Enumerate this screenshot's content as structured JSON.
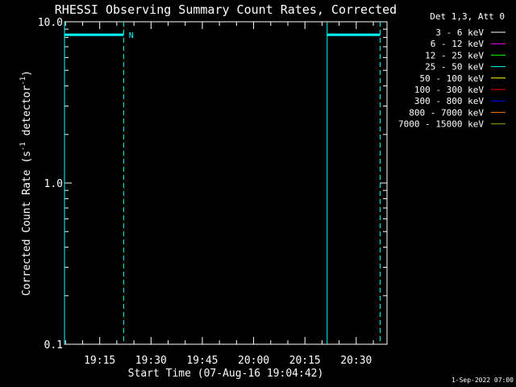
{
  "chart_data": {
    "type": "line",
    "title": "RHESSI Observing Summary Count Rates, Corrected",
    "xlabel": "Start Time (07-Aug-16 19:04:42)",
    "ylabel_main": "Corrected Count Rate (s",
    "ylabel_sup1": "-1",
    "ylabel_mid": " detector",
    "ylabel_sup2": "-1",
    "ylabel_end": ")",
    "yscale": "log",
    "ylim": [
      0.1,
      10.0
    ],
    "ytick_labels": [
      "0.1",
      "1.0",
      "10.0"
    ],
    "xlim_minutes_after_19_00": [
      4.7,
      47.8
    ],
    "xticks": [
      {
        "label": "19:15",
        "minute": 15
      },
      {
        "label": "19:30",
        "minute": 30
      },
      {
        "label": "19:45",
        "minute": 45
      },
      {
        "label": "20:00",
        "minute": 60
      },
      {
        "label": "20:15",
        "minute": 75
      },
      {
        "label": "20:30",
        "minute": 90
      }
    ],
    "legend_title": "Det 1,3, Att 0",
    "legend_placement": "top-right, outside plot",
    "legend": [
      {
        "label": "3 - 6 keV",
        "color": "#ffffff"
      },
      {
        "label": "6 - 12 keV",
        "color": "#ff00ff"
      },
      {
        "label": "12 - 25 keV",
        "color": "#00ff00"
      },
      {
        "label": "25 - 50 keV",
        "color": "#00ffff"
      },
      {
        "label": "50 - 100 keV",
        "color": "#ffff00"
      },
      {
        "label": "100 - 300 keV",
        "color": "#ff0000"
      },
      {
        "label": "300 - 800 keV",
        "color": "#0000ff"
      },
      {
        "label": "800 - 7000 keV",
        "color": "#ff8000"
      },
      {
        "label": "7000 - 15000 keV",
        "color": "#a0a000"
      }
    ],
    "series": [
      {
        "name": "25 - 50 keV",
        "color": "#00ffff",
        "segments": [
          {
            "x_minutes": [
              4.7,
              22.0
            ],
            "y": 8.3
          },
          {
            "x_minutes": [
              81.5,
              97.0
            ],
            "y": 8.3
          }
        ]
      }
    ],
    "markers": [
      {
        "minute": 4.7,
        "style": "solid"
      },
      {
        "minute": 22.0,
        "style": "dashed"
      },
      {
        "minute": 81.5,
        "style": "solid"
      },
      {
        "minute": 97.0,
        "style": "dashed"
      }
    ],
    "annotations": [
      {
        "text": "N",
        "minute": 23.5,
        "y": 8.3
      }
    ],
    "footer": "1-Sep-2022 07:00"
  }
}
